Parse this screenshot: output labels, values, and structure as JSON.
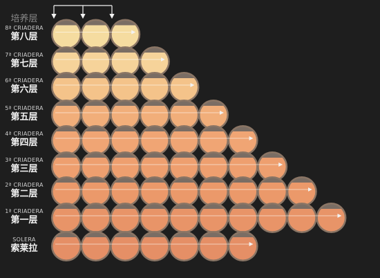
{
  "top_label": "培养层",
  "colors": {
    "background": "#1e1e1e",
    "barrel_rim": "#8a7565",
    "barrel_top": "#7a6d64",
    "arrow": "#f2f2f2"
  },
  "levels": [
    {
      "en": "8ª CRIADERA",
      "zh": "第八层",
      "barrels": 3,
      "fill": "#f5dca0"
    },
    {
      "en": "7ª CRIADERA",
      "zh": "第七层",
      "barrels": 4,
      "fill": "#f6d39a"
    },
    {
      "en": "6ª CRIADERA",
      "zh": "第六层",
      "barrels": 5,
      "fill": "#f4c38a"
    },
    {
      "en": "5ª CRIADERA",
      "zh": "第五层",
      "barrels": 6,
      "fill": "#f1ae7a"
    },
    {
      "en": "4ª CRIADERA",
      "zh": "第四层",
      "barrels": 7,
      "fill": "#f0a574"
    },
    {
      "en": "3ª CRIADERA",
      "zh": "第三层",
      "barrels": 8,
      "fill": "#ee9f6f"
    },
    {
      "en": "2ª CRIADERA",
      "zh": "第二层",
      "barrels": 9,
      "fill": "#eb996a"
    },
    {
      "en": "1ª CRIADERA",
      "zh": "第一层",
      "barrels": 10,
      "fill": "#e89468"
    },
    {
      "en": "SOLERA",
      "zh": "索莱拉",
      "barrels": 7,
      "fill": "#e58f66"
    }
  ]
}
